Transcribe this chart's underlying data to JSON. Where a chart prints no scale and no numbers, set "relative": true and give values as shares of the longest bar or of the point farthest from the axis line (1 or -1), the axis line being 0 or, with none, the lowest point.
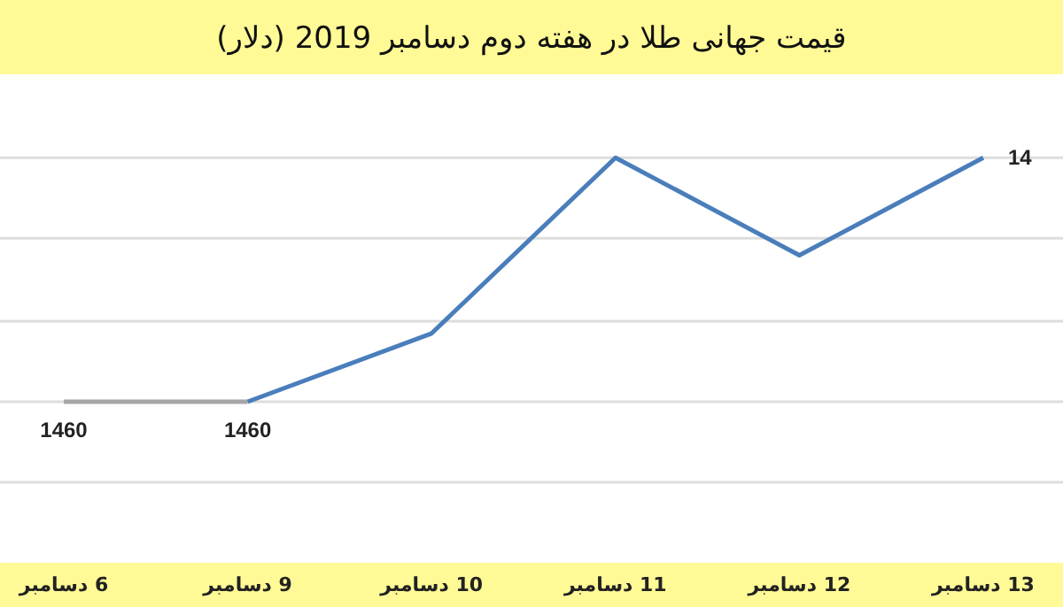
{
  "chart_data": {
    "type": "line",
    "title": "قیمت جهانی طلا در هفته دوم دسامبر 2019 (دلار)",
    "categories": [
      "6 دسامبر",
      "9 دسامبر",
      "10 دسامبر",
      "11 دسامبر",
      "12 دسامبر",
      "13 دسامبر"
    ],
    "relative": true,
    "marker": "none",
    "ref_lines": [
      {
        "axis": "y",
        "value": -0.33,
        "color": "#dddddd"
      },
      {
        "axis": "y",
        "value": 0,
        "color": "#dddddd"
      },
      {
        "axis": "y",
        "value": 0.33,
        "color": "#dddddd"
      },
      {
        "axis": "y",
        "value": 0.67,
        "color": "#dddddd"
      },
      {
        "axis": "y",
        "value": 1,
        "color": "#dddddd"
      }
    ],
    "series": [
      {
        "color": "#a6a6a6",
        "values": [
          0,
          0,
          null,
          null,
          null,
          null
        ]
      },
      {
        "color": "#4a7ebb",
        "values": [
          null,
          0,
          0.28,
          1,
          0.6,
          1
        ]
      }
    ],
    "annotations": [
      {
        "text": "1460",
        "x": "6 دسامبر",
        "y": 0
      },
      {
        "text": "1460",
        "x": "9 دسامبر",
        "y": 0
      },
      {
        "text": "14",
        "x": "13 دسامبر",
        "y": 1
      }
    ]
  }
}
